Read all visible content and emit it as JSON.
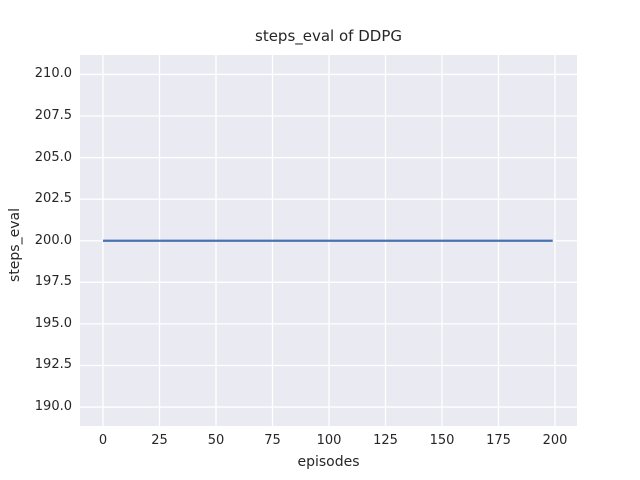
{
  "chart_data": {
    "type": "line",
    "title": "steps_eval of DDPG",
    "xlabel": "episodes",
    "ylabel": "steps_eval",
    "xlim": [
      -10.18,
      209.73
    ],
    "ylim": [
      188.86,
      211.17
    ],
    "x_ticks": [
      0,
      25,
      50,
      75,
      100,
      125,
      150,
      175,
      200
    ],
    "x_tick_labels": [
      "0",
      "25",
      "50",
      "75",
      "100",
      "125",
      "150",
      "175",
      "200"
    ],
    "y_ticks": [
      190.0,
      192.5,
      195.0,
      197.5,
      200.0,
      202.5,
      205.0,
      207.5,
      210.0
    ],
    "y_tick_labels": [
      "190.0",
      "192.5",
      "195.0",
      "197.5",
      "200.0",
      "202.5",
      "205.0",
      "207.5",
      "210.0"
    ],
    "grid": true,
    "legend": false,
    "plot_bg_color": "#eaeaf2",
    "grid_color": "#ffffff",
    "text_color": "#262626",
    "series": [
      {
        "name": "steps_eval",
        "color": "#4c72b0",
        "x": [
          0,
          199
        ],
        "y": [
          200,
          200
        ]
      }
    ]
  }
}
